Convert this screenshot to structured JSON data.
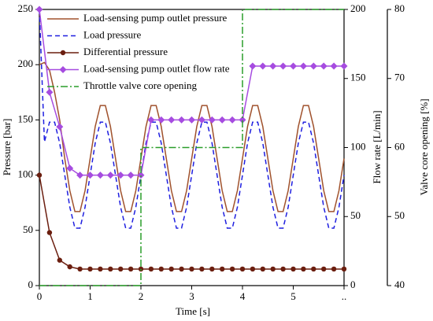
{
  "chart_data": {
    "type": "line",
    "xlabel": "Time [s]",
    "ylabel": "Pressure [bar]",
    "y2label": "Flow rate [L/min]",
    "y3label": "Valve core opening  [%]",
    "xlim": [
      0,
      6
    ],
    "xticks": [
      0,
      1,
      2,
      3,
      4,
      5,
      {
        "value": 6,
        "label": ".."
      }
    ],
    "ylim": [
      0,
      250
    ],
    "yticks": [
      0,
      50,
      100,
      150,
      200,
      250
    ],
    "y2lim": [
      0,
      200
    ],
    "y2ticks": [
      0,
      50,
      100,
      150,
      200
    ],
    "y3lim": [
      40,
      80
    ],
    "y3ticks": [
      40,
      50,
      60,
      70,
      80
    ],
    "legend": "upper left",
    "x": [
      0,
      0.1,
      0.2,
      0.3,
      0.4,
      0.5,
      0.6,
      0.7,
      0.8,
      0.9,
      1,
      1.1,
      1.2,
      1.3,
      1.4,
      1.5,
      1.6,
      1.7,
      1.8,
      1.9,
      2,
      2.1,
      2.2,
      2.3,
      2.4,
      2.5,
      2.6,
      2.7,
      2.8,
      2.9,
      3,
      3.1,
      3.2,
      3.3,
      3.4,
      3.5,
      3.6,
      3.7,
      3.8,
      3.9,
      4,
      4.1,
      4.2,
      4.3,
      4.4,
      4.5,
      4.6,
      4.7,
      4.8,
      4.9,
      5,
      5.1,
      5.2,
      5.3,
      5.4,
      5.5,
      5.6,
      5.7,
      5.8,
      5.9,
      6
    ],
    "series": [
      {
        "name": "Load-sensing pump outlet pressure",
        "color": "#a0522d",
        "style": "solid",
        "values": [
          200,
          202,
          195,
          175,
          150,
          115,
          86,
          67,
          67,
          86,
          115,
          144,
          163,
          163,
          144,
          115,
          86,
          67,
          67,
          86,
          115,
          144,
          163,
          163,
          144,
          115,
          86,
          67,
          67,
          86,
          115,
          144,
          163,
          163,
          144,
          115,
          86,
          67,
          67,
          86,
          115,
          144,
          163,
          163,
          144,
          115,
          86,
          67,
          67,
          86,
          115,
          144,
          163,
          163,
          144,
          115,
          86,
          67,
          67,
          86,
          115
        ]
      },
      {
        "name": "Load pressure",
        "color": "#1f1fe0",
        "style": "dashed",
        "values": [
          250,
          130,
          148,
          148,
          129,
          100,
          71,
          52,
          52,
          71,
          100,
          129,
          148,
          148,
          129,
          100,
          71,
          52,
          52,
          71,
          100,
          129,
          148,
          148,
          129,
          100,
          71,
          52,
          52,
          71,
          100,
          129,
          148,
          148,
          129,
          100,
          71,
          52,
          52,
          71,
          100,
          129,
          148,
          148,
          129,
          100,
          71,
          52,
          52,
          71,
          100,
          129,
          148,
          148,
          129,
          100,
          71,
          52,
          52,
          71,
          100
        ]
      },
      {
        "name": "Differential pressure",
        "color": "#6b1e0f",
        "style": "solid",
        "marker": "circle",
        "x": [
          0,
          0.2,
          0.4,
          0.6,
          0.8,
          1,
          1.2,
          1.4,
          1.6,
          1.8,
          2,
          2.2,
          2.4,
          2.6,
          2.8,
          3,
          3.2,
          3.4,
          3.6,
          3.8,
          4,
          4.2,
          4.4,
          4.6,
          4.8,
          5,
          5.2,
          5.4,
          5.6,
          5.8,
          6
        ],
        "values": [
          100,
          48,
          23,
          17,
          15,
          15,
          15,
          15,
          15,
          15,
          15,
          15,
          15,
          15,
          15,
          15,
          15,
          15,
          15,
          15,
          15,
          15,
          15,
          15,
          15,
          15,
          15,
          15,
          15,
          15,
          15
        ]
      },
      {
        "name": "Load-sensing pump outlet flow rate",
        "color": "#a64ce0",
        "style": "solid",
        "marker": "diamond",
        "axis": "y2",
        "x": [
          0,
          0.2,
          0.4,
          0.6,
          0.8,
          1,
          1.2,
          1.4,
          1.6,
          1.8,
          2,
          2.2,
          2.4,
          2.6,
          2.8,
          3,
          3.2,
          3.4,
          3.6,
          3.8,
          4,
          4.2,
          4.4,
          4.6,
          4.8,
          5,
          5.2,
          5.4,
          5.6,
          5.8,
          6
        ],
        "values": [
          200,
          140,
          115,
          85,
          80,
          80,
          80,
          80,
          80,
          80,
          80,
          120,
          120,
          120,
          120,
          120,
          120,
          120,
          120,
          120,
          120,
          159,
          159,
          159,
          159,
          159,
          159,
          159,
          159,
          159,
          159
        ]
      },
      {
        "name": "Throttle valve core opening",
        "color": "#2a9d2a",
        "style": "dashdot",
        "axis": "y3",
        "x": [
          0,
          2,
          2,
          4,
          4,
          6
        ],
        "values": [
          40,
          40,
          60,
          60,
          80,
          80
        ]
      }
    ]
  }
}
